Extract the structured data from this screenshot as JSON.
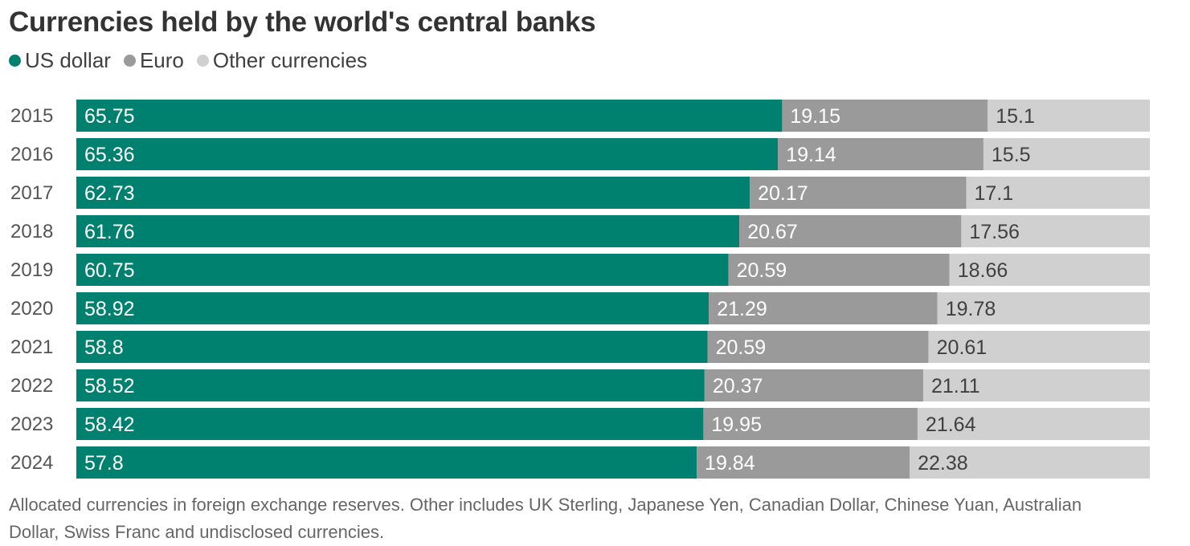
{
  "title": "Currencies held by the world's central banks",
  "note": "Allocated currencies in foreign exchange reserves. Other includes UK Sterling, Japanese Yen, Canadian Dollar, Chinese Yuan, Australian Dollar, Swiss Franc and undisclosed currencies.",
  "colors": {
    "usd": "#00806f",
    "eur": "#9a9a9a",
    "other": "#d0d0d0",
    "label_on_dark": "#ffffff",
    "label_on_light": "#404040"
  },
  "legend": [
    {
      "name": "US dollar",
      "color": "#00806f"
    },
    {
      "name": "Euro",
      "color": "#9a9a9a"
    },
    {
      "name": "Other currencies",
      "color": "#d0d0d0"
    }
  ],
  "chart_data": {
    "type": "bar",
    "orientation": "horizontal",
    "stacked": true,
    "title": "Currencies held by the world's central banks",
    "categories": [
      "2015",
      "2016",
      "2017",
      "2018",
      "2019",
      "2020",
      "2021",
      "2022",
      "2023",
      "2024"
    ],
    "series": [
      {
        "name": "US dollar",
        "color": "#00806f",
        "values": [
          65.75,
          65.36,
          62.73,
          61.76,
          60.75,
          58.92,
          58.8,
          58.52,
          58.42,
          57.8
        ]
      },
      {
        "name": "Euro",
        "color": "#9a9a9a",
        "values": [
          19.15,
          19.14,
          20.17,
          20.67,
          20.59,
          21.29,
          20.59,
          20.37,
          19.95,
          19.84
        ]
      },
      {
        "name": "Other currencies",
        "color": "#d0d0d0",
        "values": [
          15.1,
          15.5,
          17.1,
          17.56,
          18.66,
          19.78,
          20.61,
          21.11,
          21.64,
          22.38
        ]
      }
    ],
    "data_labels": true,
    "legend_position": "top-left",
    "grid": false
  }
}
